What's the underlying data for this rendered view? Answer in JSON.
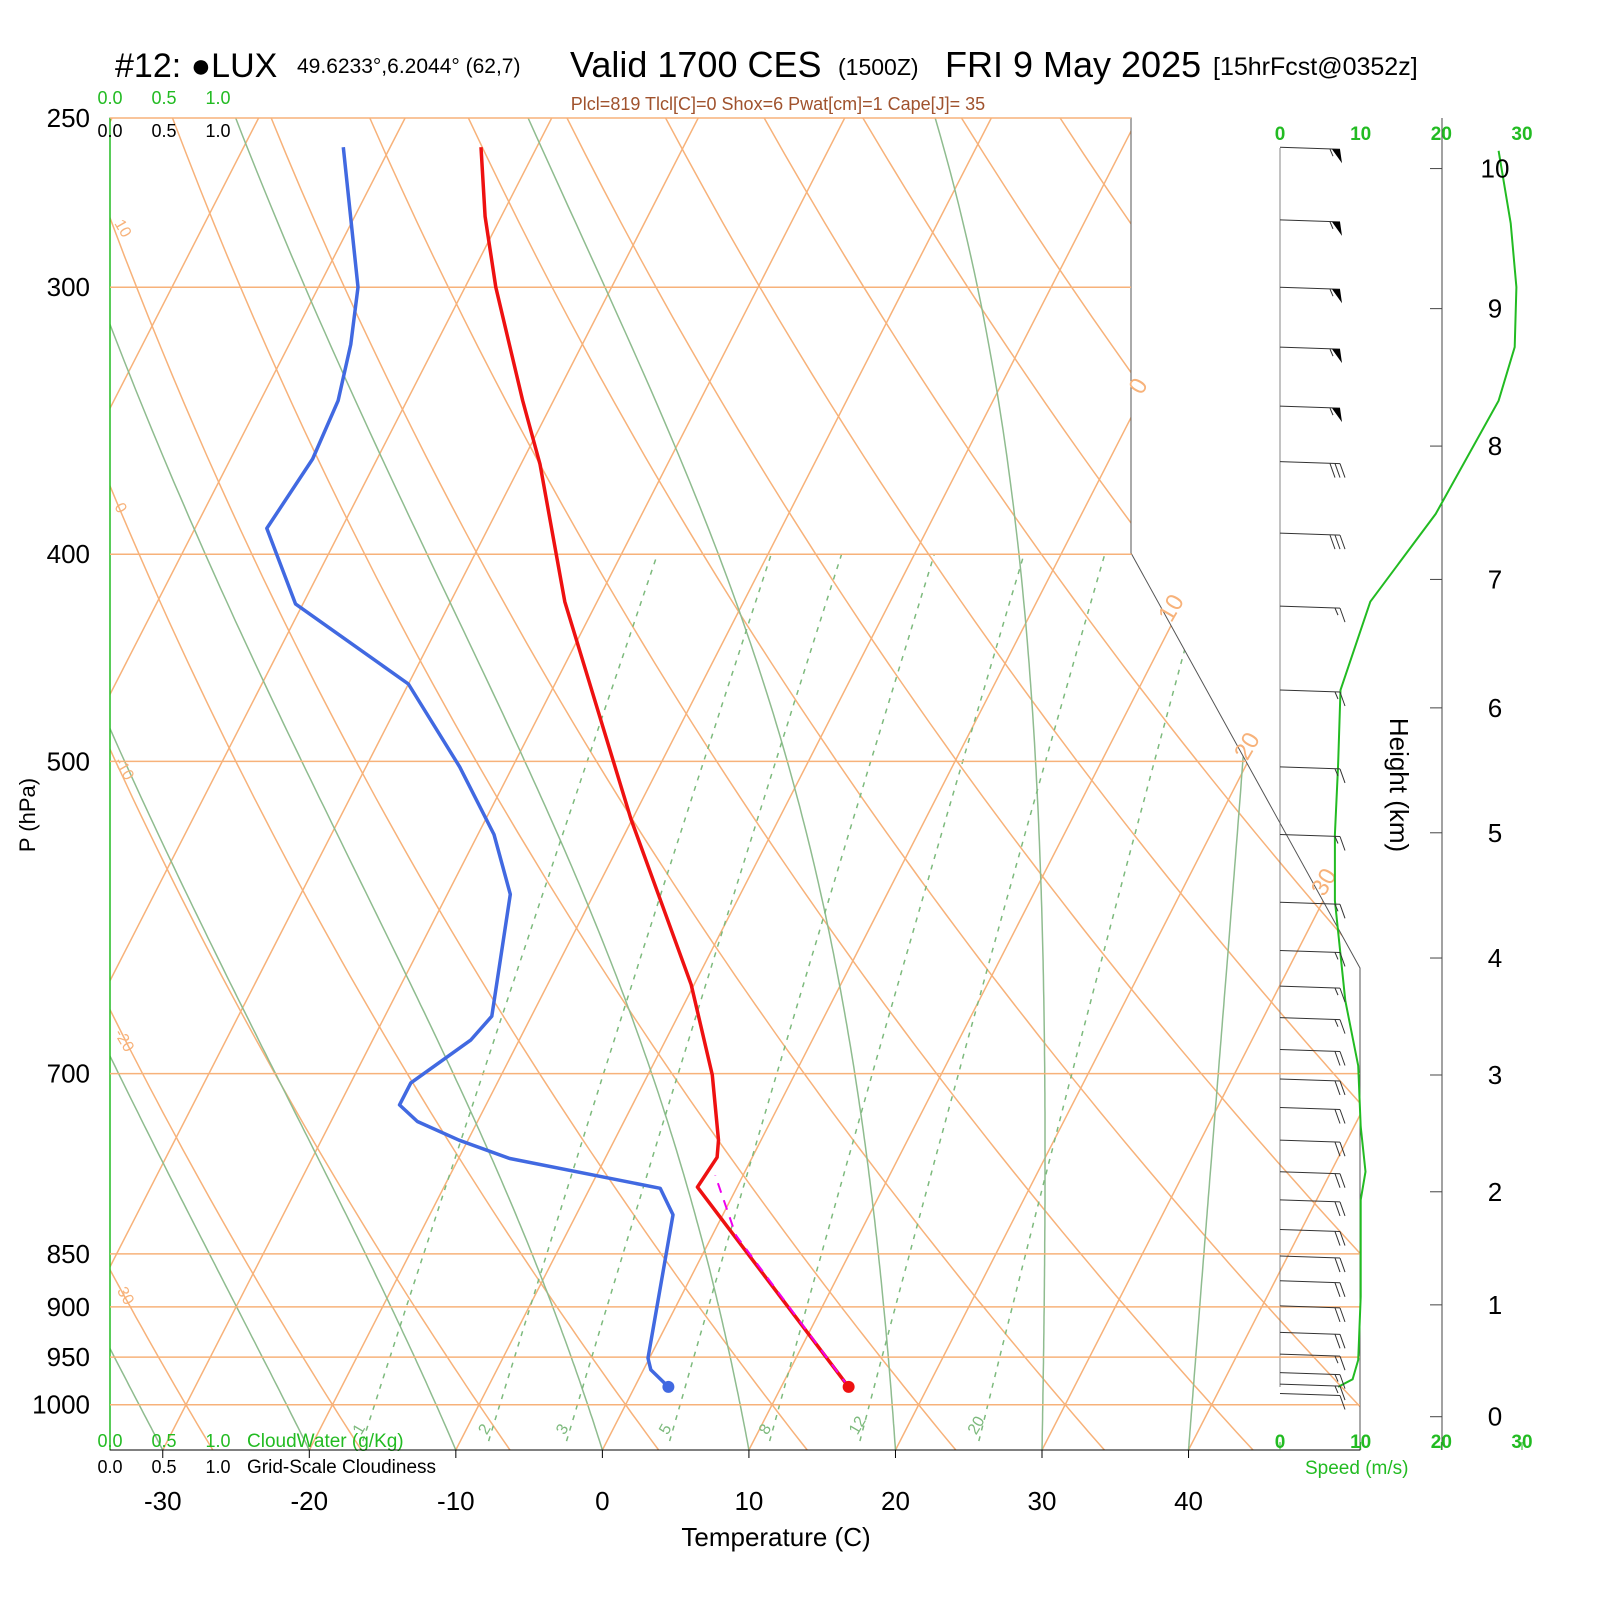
{
  "chart_data": {
    "type": "skewt",
    "title": "#12: ●LUX",
    "location": "49.6233°,6.2044° (62,7)",
    "valid": "Valid 1700 CES",
    "utc": "(1500Z)",
    "date": "FRI 9 May 2025",
    "forecast": "[15hrFcst@0352z]",
    "subtitle": "Plcl=819 Tlcl[C]=0 Shox=6 Pwat[cm]=1 Cape[J]= 35",
    "xlabel": "Temperature (C)",
    "ylabel": "P (hPa)",
    "y2label": "Height (km)",
    "xlim": [
      -33.6,
      51.7
    ],
    "xticks": [
      -30,
      -20,
      -10,
      0,
      10,
      20,
      30,
      40
    ],
    "ylim": [
      1050,
      250
    ],
    "yticks": [
      250,
      300,
      400,
      500,
      700,
      850,
      900,
      950,
      1000
    ],
    "log_y": true,
    "isotherm_labels": [
      0,
      10,
      20,
      30
    ],
    "dry_adiabat_labels": [
      -30,
      -20,
      -10,
      0,
      10
    ],
    "mixing_ratios": [
      1,
      2,
      3,
      5,
      8,
      12,
      20
    ],
    "series": [
      {
        "color": "#ee1111",
        "dash": false,
        "p": [
          981,
          791,
          766,
          752,
          701,
          636,
          532,
          421,
          363,
          339,
          300,
          278,
          258
        ],
        "values": [
          14.6,
          -2.7,
          -2.4,
          -2.9,
          -5.6,
          -10.2,
          -20.1,
          -32.2,
          -38.7,
          -42.1,
          -47.9,
          -51.1,
          -53.8
        ]
      },
      {
        "color": "#4169e1",
        "dash": false,
        "p": [
          981,
          963,
          951,
          815,
          792,
          767,
          752,
          737,
          724,
          707,
          675,
          658,
          577,
          541,
          503,
          460,
          422,
          389,
          361,
          339,
          319,
          300,
          258
        ],
        "values": [
          2.3,
          0.5,
          -0.1,
          -3.4,
          -5.2,
          -16.5,
          -20.6,
          -24.1,
          -25.9,
          -25.9,
          -23.3,
          -22.7,
          -25.7,
          -28.9,
          -33.6,
          -40.0,
          -50.5,
          -55.1,
          -54.4,
          -54.7,
          -55.8,
          -57.3,
          -63.2
        ]
      },
      {
        "color": "#ee00ee",
        "dash": true,
        "p": [
          981,
          833,
          781
        ],
        "values": [
          14.6,
          1.6,
          -1.9
        ]
      }
    ],
    "wind": {
      "color": "#22bb22",
      "p": [
        981,
        973,
        953,
        890,
        802,
        778,
        741,
        694,
        647,
        581,
        541,
        502,
        463,
        421,
        383,
        339,
        320,
        300,
        280,
        259
      ],
      "values": [
        7.2,
        9.0,
        9.7,
        10,
        10,
        10.6,
        10,
        9.7,
        8.1,
        6.8,
        6.8,
        7.2,
        7.5,
        11.2,
        19.3,
        27.1,
        29.1,
        29.3,
        28.6,
        27.1
      ]
    },
    "speed_label": "Speed (m/s)",
    "speedlim": [
      0,
      30
    ],
    "speedticks": [
      0,
      10,
      20,
      30
    ],
    "height_ticks": [
      0,
      1,
      2,
      3,
      4,
      5,
      6,
      7,
      8,
      9,
      10
    ],
    "height_p": [
      1013,
      898,
      795,
      701,
      618,
      540,
      472,
      411,
      356,
      307,
      264
    ],
    "barbs": {
      "p": [
        258,
        279,
        300,
        320,
        341,
        362,
        391,
        423,
        463,
        503,
        541,
        582,
        613,
        637,
        659,
        682,
        704,
        726,
        752,
        778,
        802,
        828,
        852,
        875,
        899,
        925,
        947,
        966,
        978,
        988
      ],
      "speed": [
        55,
        55,
        55,
        55,
        55,
        30,
        30,
        15,
        15,
        15,
        15,
        15,
        15,
        15,
        15,
        20,
        20,
        20,
        20,
        20,
        20,
        20,
        20,
        20,
        20,
        20,
        15,
        15,
        15,
        10
      ]
    },
    "cloud_water": {
      "label": "CloudWater (g/Kg)",
      "ticks": [
        {
          "value": 0,
          "label": "0.0"
        },
        {
          "value": 0.5,
          "label": "0.5"
        },
        {
          "value": 1,
          "label": "1.0"
        }
      ]
    },
    "cloudiness": {
      "label": "Grid-Scale Cloudiness",
      "ticks": [
        {
          "value": 0,
          "label": "0.0"
        },
        {
          "value": 0.5,
          "label": "0.5"
        },
        {
          "value": 1,
          "label": "1.0"
        }
      ]
    }
  }
}
